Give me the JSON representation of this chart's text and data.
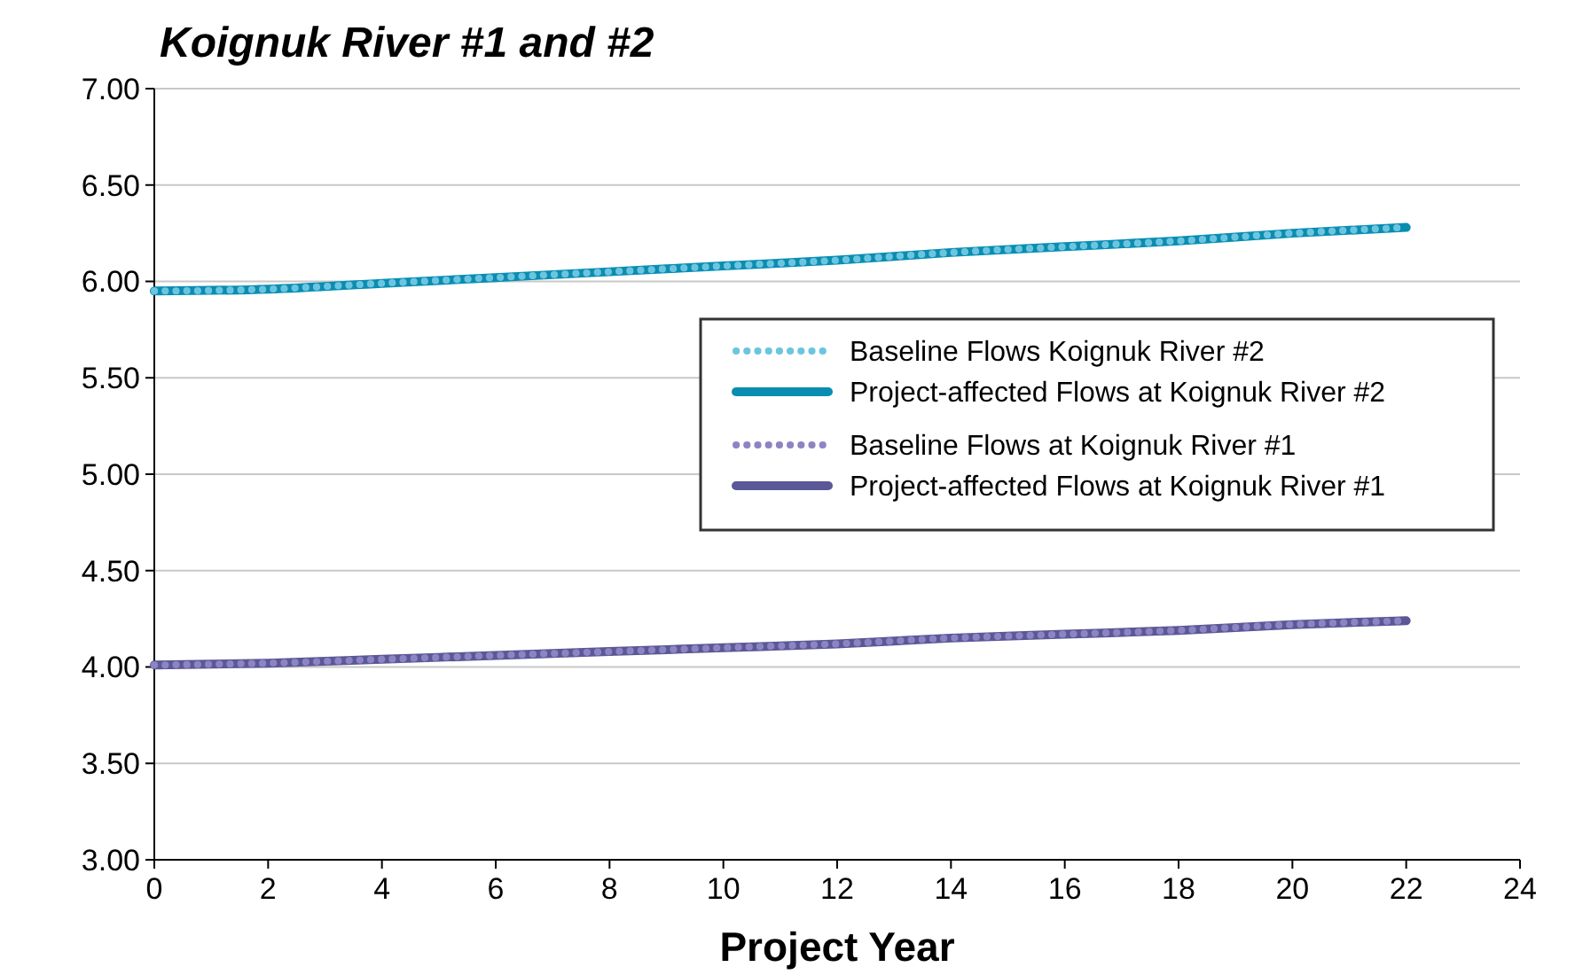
{
  "chart_data": {
    "type": "line",
    "title": "Koignuk River #1 and #2",
    "xlabel": "Project Year",
    "x": [
      0,
      2,
      4,
      6,
      8,
      10,
      12,
      14,
      16,
      18,
      20,
      22
    ],
    "series": [
      {
        "name": "Project-affected Flows at Koignuk River #2",
        "color": "#0a8db0",
        "line_style": "solid",
        "values": [
          5.95,
          5.96,
          5.99,
          6.02,
          6.05,
          6.08,
          6.11,
          6.15,
          6.18,
          6.21,
          6.25,
          6.28
        ]
      },
      {
        "name": "Baseline Flows Koignuk River #2",
        "color": "#6cc5e0",
        "line_style": "dotted",
        "values": [
          5.95,
          5.96,
          5.99,
          6.02,
          6.05,
          6.08,
          6.11,
          6.15,
          6.18,
          6.21,
          6.25,
          6.28
        ]
      },
      {
        "name": "Project-affected Flows at Koignuk River #1",
        "color": "#5a5896",
        "line_style": "solid",
        "values": [
          4.01,
          4.02,
          4.04,
          4.06,
          4.08,
          4.1,
          4.12,
          4.15,
          4.17,
          4.19,
          4.22,
          4.24
        ]
      },
      {
        "name": "Baseline Flows at Koignuk River #1",
        "color": "#8e84c4",
        "line_style": "dotted",
        "values": [
          4.01,
          4.02,
          4.04,
          4.06,
          4.08,
          4.1,
          4.12,
          4.15,
          4.17,
          4.19,
          4.22,
          4.24
        ]
      }
    ],
    "xlim": [
      0,
      24
    ],
    "xticks": [
      0,
      2,
      4,
      6,
      8,
      10,
      12,
      14,
      16,
      18,
      20,
      22,
      24
    ],
    "ylim": [
      3,
      7
    ],
    "yticks": [
      {
        "value": 3,
        "label": "3.00"
      },
      {
        "value": 3.5,
        "label": "3.50"
      },
      {
        "value": 4,
        "label": "4.00"
      },
      {
        "value": 4.5,
        "label": "4.50"
      },
      {
        "value": 5,
        "label": "5.00"
      },
      {
        "value": 5.5,
        "label": "5.50"
      },
      {
        "value": 6,
        "label": "6.00"
      },
      {
        "value": 6.5,
        "label": "6.50"
      },
      {
        "value": 7,
        "label": "7.00"
      }
    ],
    "grid": "y",
    "legend": "right",
    "marker": "none"
  }
}
